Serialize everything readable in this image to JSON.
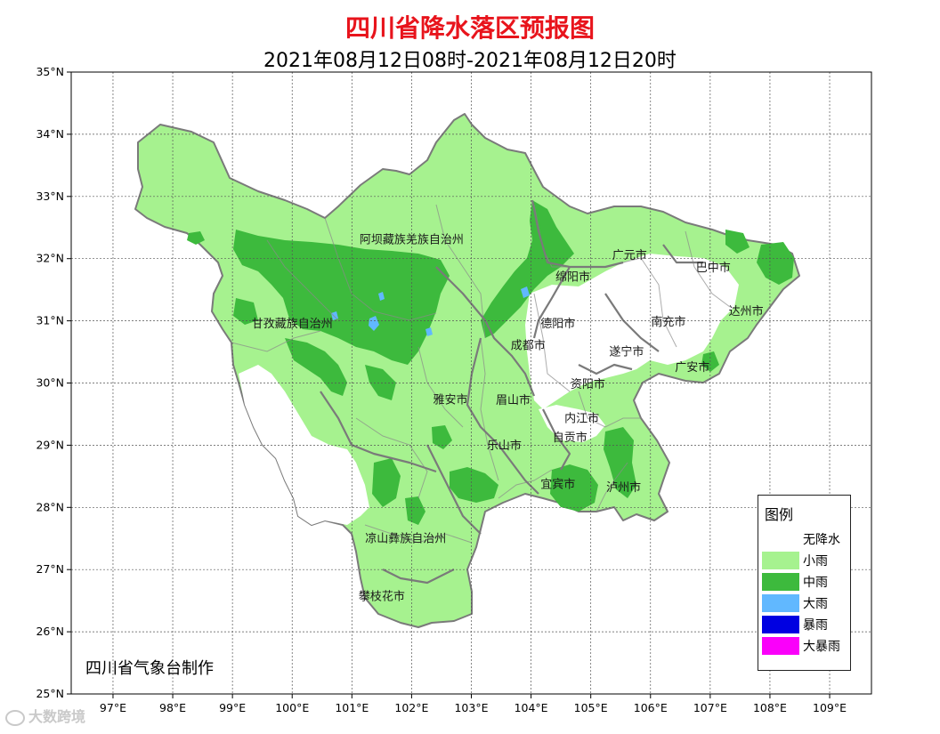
{
  "title": "四川省降水落区预报图",
  "subtitle": "2021年08月12日08时-2021年08月12日20时",
  "producer": "四川省气象台制作",
  "watermark": "大数跨境",
  "axes": {
    "lat_labels": [
      "35°N",
      "34°N",
      "33°N",
      "32°N",
      "31°N",
      "30°N",
      "29°N",
      "28°N",
      "27°N",
      "26°N",
      "25°N"
    ],
    "lon_labels": [
      "97°E",
      "98°E",
      "99°E",
      "100°E",
      "101°E",
      "102°E",
      "103°E",
      "104°E",
      "105°E",
      "106°E",
      "107°E",
      "108°E",
      "109°E"
    ],
    "lat_range": [
      25,
      35
    ],
    "lon_range": [
      96.3,
      109.7
    ],
    "grid": true
  },
  "cities": [
    {
      "name": "阿坝藏族羌族自治州",
      "lon": 102.0,
      "lat": 32.3
    },
    {
      "name": "甘孜藏族自治州",
      "lon": 100.0,
      "lat": 30.95
    },
    {
      "name": "广元市",
      "lon": 105.65,
      "lat": 32.05
    },
    {
      "name": "巴中市",
      "lon": 107.05,
      "lat": 31.85
    },
    {
      "name": "绵阳市",
      "lon": 104.7,
      "lat": 31.7
    },
    {
      "name": "达州市",
      "lon": 107.6,
      "lat": 31.15
    },
    {
      "name": "德阳市",
      "lon": 104.45,
      "lat": 30.95
    },
    {
      "name": "南充市",
      "lon": 106.3,
      "lat": 30.98
    },
    {
      "name": "成都市",
      "lon": 103.95,
      "lat": 30.6
    },
    {
      "name": "遂宁市",
      "lon": 105.6,
      "lat": 30.5
    },
    {
      "name": "广安市",
      "lon": 106.7,
      "lat": 30.25
    },
    {
      "name": "资阳市",
      "lon": 104.95,
      "lat": 29.98
    },
    {
      "name": "雅安市",
      "lon": 102.65,
      "lat": 29.73
    },
    {
      "name": "眉山市",
      "lon": 103.7,
      "lat": 29.72
    },
    {
      "name": "内江市",
      "lon": 104.85,
      "lat": 29.43
    },
    {
      "name": "自贡市",
      "lon": 104.65,
      "lat": 29.12
    },
    {
      "name": "乐山市",
      "lon": 103.55,
      "lat": 28.99
    },
    {
      "name": "宜宾市",
      "lon": 104.45,
      "lat": 28.37
    },
    {
      "name": "泸州市",
      "lon": 105.55,
      "lat": 28.32
    },
    {
      "name": "凉山彝族自治州",
      "lon": 101.9,
      "lat": 27.5
    },
    {
      "name": "攀枝花市",
      "lon": 101.5,
      "lat": 26.57
    }
  ],
  "legend": {
    "title": "图例",
    "items": [
      {
        "label": "无降水",
        "color": "#ffffff"
      },
      {
        "label": "小雨",
        "color": "#a6f28f"
      },
      {
        "label": "中雨",
        "color": "#3dba3d"
      },
      {
        "label": "大雨",
        "color": "#61b8ff"
      },
      {
        "label": "暴雨",
        "color": "#0000e1"
      },
      {
        "label": "大暴雨",
        "color": "#fa00fa"
      }
    ]
  },
  "colors": {
    "light_rain": "#a6f28f",
    "moderate_rain": "#3dba3d",
    "heavy_rain": "#61b8ff",
    "border": "#7a7a7a",
    "title": "#e8141c"
  }
}
